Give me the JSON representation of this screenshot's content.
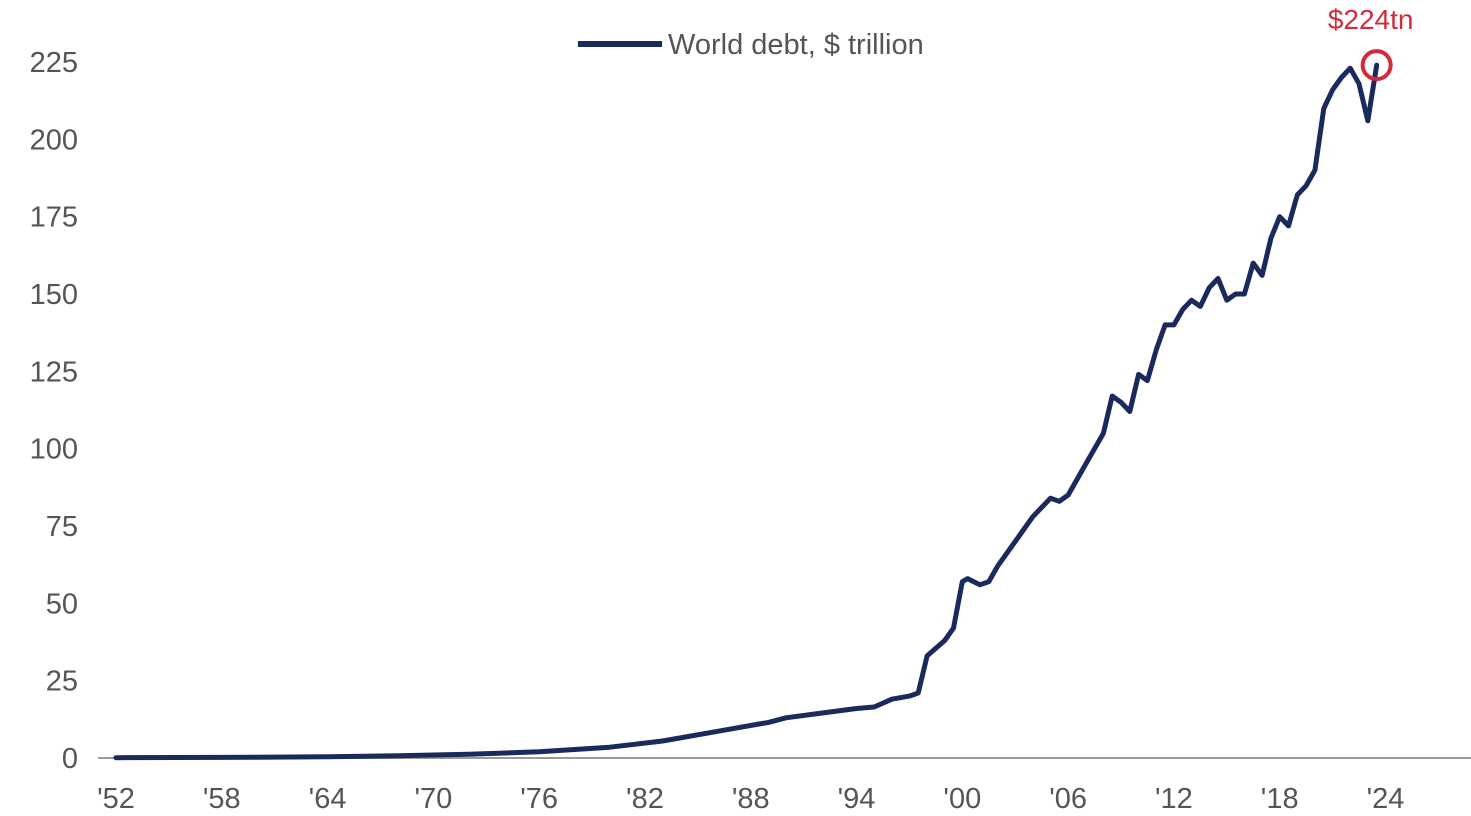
{
  "colors": {
    "line": "#1b2a5c",
    "axis": "#9a9a9a",
    "tick_text": "#555555",
    "annotation": "#d22b3b"
  },
  "chart_data": {
    "type": "line",
    "xlim": [
      1952,
      2028
    ],
    "ylim": [
      0,
      225
    ],
    "grid": false,
    "legend_position": "top-center",
    "x_ticks": [
      1952,
      1958,
      1964,
      1970,
      1976,
      1982,
      1988,
      1994,
      2000,
      2006,
      2012,
      2018,
      2024
    ],
    "x_tick_labels": [
      "'52",
      "'58",
      "'64",
      "'70",
      "'76",
      "'82",
      "'88",
      "'94",
      "'00",
      "'06",
      "'12",
      "'18",
      "'24"
    ],
    "y_ticks": [
      0,
      25,
      50,
      75,
      100,
      125,
      150,
      175,
      200,
      225
    ],
    "y_tick_labels": [
      "0",
      "25",
      "50",
      "75",
      "100",
      "125",
      "150",
      "175",
      "200",
      "225"
    ],
    "series": [
      {
        "name": "World debt, $ trillion",
        "x": [
          1952,
          1958,
          1964,
          1968,
          1972,
          1976,
          1980,
          1983,
          1986,
          1989,
          1990,
          1992,
          1994,
          1995,
          1996,
          1997,
          1997.5,
          1998,
          1999,
          1999.5,
          2000,
          2000.3,
          2001,
          2001.5,
          2002,
          2003,
          2004,
          2005,
          2005.5,
          2006,
          2007,
          2008,
          2008.5,
          2009,
          2009.5,
          2010,
          2010.5,
          2011,
          2011.5,
          2012,
          2012.5,
          2013,
          2013.5,
          2014,
          2014.5,
          2015,
          2015.5,
          2016,
          2016.5,
          2017,
          2017.5,
          2018,
          2018.5,
          2019,
          2019.5,
          2020,
          2020.5,
          2021,
          2021.5,
          2022,
          2022.5,
          2023,
          2023.5
        ],
        "values": [
          0.1,
          0.2,
          0.4,
          0.7,
          1.2,
          2,
          3.5,
          5.5,
          8.5,
          11.5,
          13,
          14.5,
          16,
          16.5,
          19,
          20,
          21,
          33,
          38,
          42,
          57,
          58,
          56,
          57,
          62,
          70,
          78,
          84,
          83,
          85,
          95,
          105,
          117,
          115,
          112,
          124,
          122,
          132,
          140,
          140,
          145,
          148,
          146,
          152,
          155,
          148,
          150,
          150,
          160,
          156,
          168,
          175,
          172,
          182,
          185,
          190,
          210,
          216,
          220,
          223,
          218,
          206,
          224
        ]
      }
    ],
    "annotations": [
      {
        "text": "$224tn",
        "x": 2023.5,
        "y": 224
      }
    ]
  }
}
